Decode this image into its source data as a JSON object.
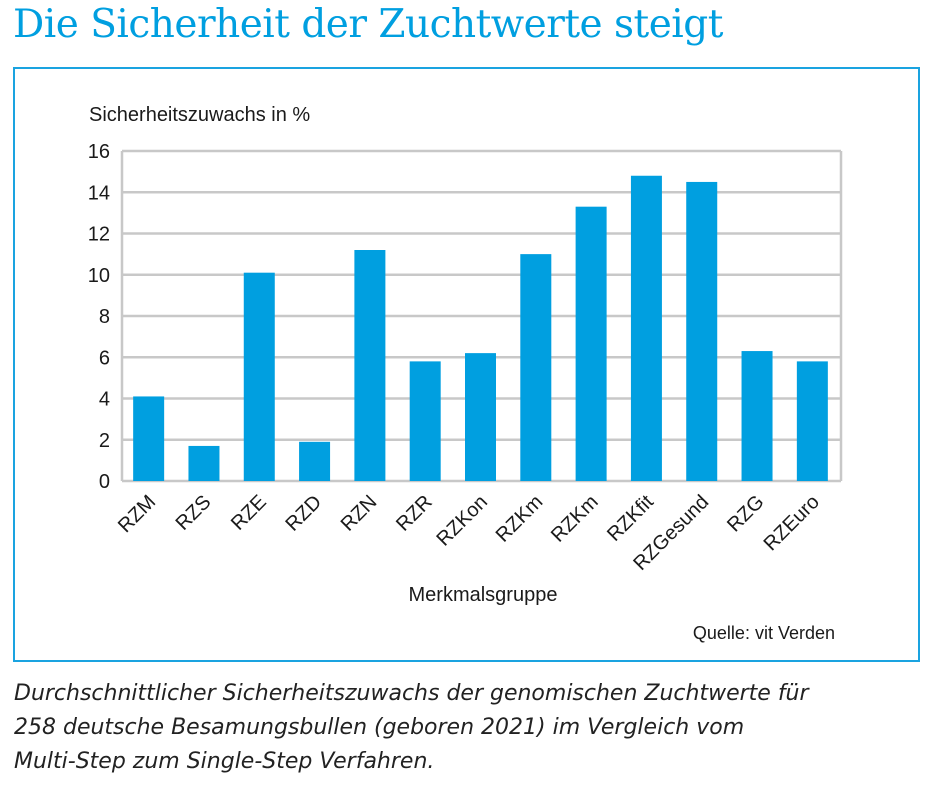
{
  "title": "Die Sicherheit der Zuchtwerte steigt",
  "colors": {
    "title": "#009fe0",
    "bar": "#009fe0",
    "frame": "#1aa3e0",
    "grid": "#c8c8c8"
  },
  "chart_data": {
    "type": "bar",
    "ylabel": "Sicherheitszuwachs in %",
    "xlabel": "Merkmalsgruppe",
    "source": "Quelle: vit Verden",
    "ylim": [
      0,
      16
    ],
    "yticks": [
      0,
      2,
      4,
      6,
      8,
      10,
      12,
      14,
      16
    ],
    "grid": true,
    "categories": [
      "RZM",
      "RZS",
      "RZE",
      "RZD",
      "RZN",
      "RZR",
      "RZKon",
      "RZKm",
      "RZKm",
      "RZKfit",
      "RZGesund",
      "RZG",
      "RZEuro"
    ],
    "values": [
      4.1,
      1.7,
      10.1,
      1.9,
      11.2,
      5.8,
      6.2,
      11.0,
      13.3,
      14.8,
      14.5,
      6.3,
      5.8
    ]
  },
  "caption": [
    "Durchschnittlicher Sicherheitszuwachs der genomischen Zuchtwerte für",
    "258 deutsche Besamungsbullen (geboren 2021) im Vergleich vom",
    "Multi-Step zum Single-Step Verfahren."
  ]
}
